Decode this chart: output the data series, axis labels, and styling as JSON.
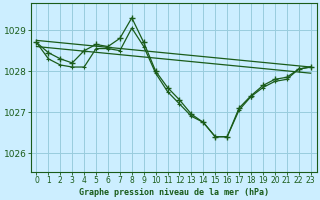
{
  "title": "Graphe pression niveau de la mer (hPa)",
  "bg_color": "#cceeff",
  "plot_bg_color": "#cceeff",
  "grid_color": "#99ccdd",
  "line_color": "#1a5c1a",
  "ylim": [
    1025.55,
    1029.65
  ],
  "yticks": [
    1026,
    1027,
    1028,
    1029
  ],
  "xlim": [
    -0.5,
    23.5
  ],
  "xticks": [
    0,
    1,
    2,
    3,
    4,
    5,
    6,
    7,
    8,
    9,
    10,
    11,
    12,
    13,
    14,
    15,
    16,
    17,
    18,
    19,
    20,
    21,
    22,
    23
  ],
  "series_main": [
    1028.7,
    1028.45,
    1028.3,
    1028.2,
    1028.5,
    1028.65,
    1028.6,
    1028.8,
    1029.3,
    1028.7,
    1028.0,
    1027.6,
    1027.3,
    1026.95,
    1026.75,
    1026.4,
    1026.4,
    1027.1,
    1027.4,
    1027.65,
    1027.8,
    1027.85,
    1028.05,
    1028.1
  ],
  "series2": [
    1028.7,
    1028.3,
    1028.15,
    1028.1,
    1028.1,
    1028.55,
    1028.55,
    1028.5,
    1029.05,
    1028.6,
    1027.95,
    1027.5,
    1027.2,
    1026.9,
    1026.75,
    1026.4,
    1026.4,
    1027.05,
    1027.38,
    1027.6,
    1027.75,
    1027.8,
    1028.05,
    1028.1
  ],
  "trend1_x": [
    0,
    23
  ],
  "trend1_y": [
    1028.75,
    1028.1
  ],
  "trend2_x": [
    0,
    23
  ],
  "trend2_y": [
    1028.6,
    1027.95
  ],
  "xlabel_fontsize": 6,
  "tick_fontsize": 5.5,
  "ytick_fontsize": 6.5
}
